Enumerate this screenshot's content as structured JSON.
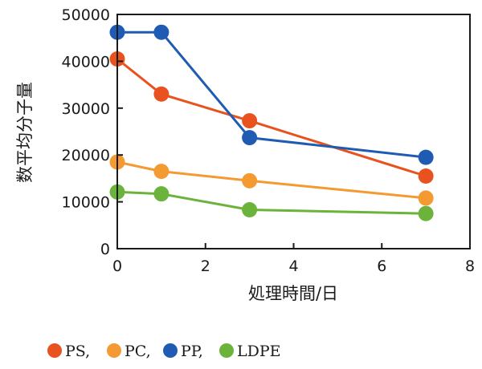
{
  "chart_data": {
    "type": "line",
    "title": "",
    "xlabel": "処理時間/日",
    "ylabel": "数平均分子量",
    "xlim": [
      0,
      8
    ],
    "ylim": [
      0,
      50000
    ],
    "x_ticks": [
      0,
      2,
      4,
      6,
      8
    ],
    "y_ticks": [
      0,
      10000,
      20000,
      30000,
      40000,
      50000
    ],
    "grid": false,
    "legend_position": "bottom-left",
    "series": [
      {
        "name": "PS",
        "legend_label": "PS,",
        "color": "#e8521f",
        "points": [
          {
            "x": 0,
            "y": 40500
          },
          {
            "x": 1,
            "y": 33000
          },
          {
            "x": 3,
            "y": 27300
          },
          {
            "x": 7,
            "y": 15500
          }
        ]
      },
      {
        "name": "PC",
        "legend_label": "PC,",
        "color": "#f39a33",
        "points": [
          {
            "x": 0,
            "y": 18500
          },
          {
            "x": 1,
            "y": 16500
          },
          {
            "x": 3,
            "y": 14500
          },
          {
            "x": 7,
            "y": 10800
          }
        ]
      },
      {
        "name": "PP",
        "legend_label": "PP,",
        "color": "#1f5bb3",
        "points": [
          {
            "x": 0,
            "y": 46200
          },
          {
            "x": 1,
            "y": 46200
          },
          {
            "x": 3,
            "y": 23700
          },
          {
            "x": 7,
            "y": 19500
          }
        ]
      },
      {
        "name": "LDPE",
        "legend_label": "LDPE",
        "color": "#6bb33a",
        "points": [
          {
            "x": 0,
            "y": 12100
          },
          {
            "x": 1,
            "y": 11700
          },
          {
            "x": 3,
            "y": 8300
          },
          {
            "x": 7,
            "y": 7500
          }
        ]
      }
    ]
  }
}
